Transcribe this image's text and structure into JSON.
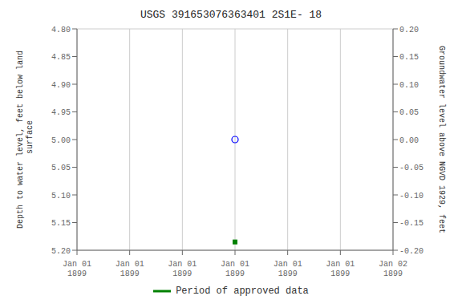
{
  "chart_data": {
    "type": "scatter",
    "title": "USGS 391653076363401 2S1E- 18",
    "ylabel": "Depth to water level, feet below land\n surface",
    "y2label": "Groundwater level above NGVD 1929, feet",
    "categories": [
      "Jan 01\n1899",
      "Jan 01\n1899",
      "Jan 01\n1899",
      "Jan 01\n1899",
      "Jan 01\n1899",
      "Jan 01\n1899",
      "Jan 02\n1899"
    ],
    "series": [
      {
        "color": "blue",
        "marker": "circle-open",
        "values": [
          null,
          null,
          null,
          5.0,
          null,
          null,
          null
        ]
      },
      {
        "name": "Period of approved data",
        "color": "green",
        "marker": "square",
        "values": [
          null,
          null,
          null,
          5.185,
          null,
          null,
          null
        ]
      }
    ],
    "ylim": [
      5.2,
      4.8
    ],
    "yticks": [
      {
        "value": 4.8,
        "label": "4.80"
      },
      {
        "value": 4.85,
        "label": "4.85"
      },
      {
        "value": 4.9,
        "label": "4.90"
      },
      {
        "value": 4.95,
        "label": "4.95"
      },
      {
        "value": 5.0,
        "label": "5.00"
      },
      {
        "value": 5.05,
        "label": "5.05"
      },
      {
        "value": 5.1,
        "label": "5.10"
      },
      {
        "value": 5.15,
        "label": "5.15"
      },
      {
        "value": 5.2,
        "label": "5.20"
      }
    ],
    "y2lim": [
      -0.2,
      0.2
    ],
    "y2ticks": [
      {
        "value": 0.2,
        "label": "0.20"
      },
      {
        "value": 0.15,
        "label": "0.15"
      },
      {
        "value": 0.1,
        "label": "0.10"
      },
      {
        "value": 0.05,
        "label": "0.05"
      },
      {
        "value": 0.0,
        "label": "0.00"
      },
      {
        "value": -0.05,
        "label": "-0.05"
      },
      {
        "value": -0.1,
        "label": "-0.10"
      },
      {
        "value": -0.15,
        "label": "-0.15"
      },
      {
        "value": -0.2,
        "label": "-0.20"
      }
    ],
    "grid": true,
    "legend": "bottom"
  }
}
